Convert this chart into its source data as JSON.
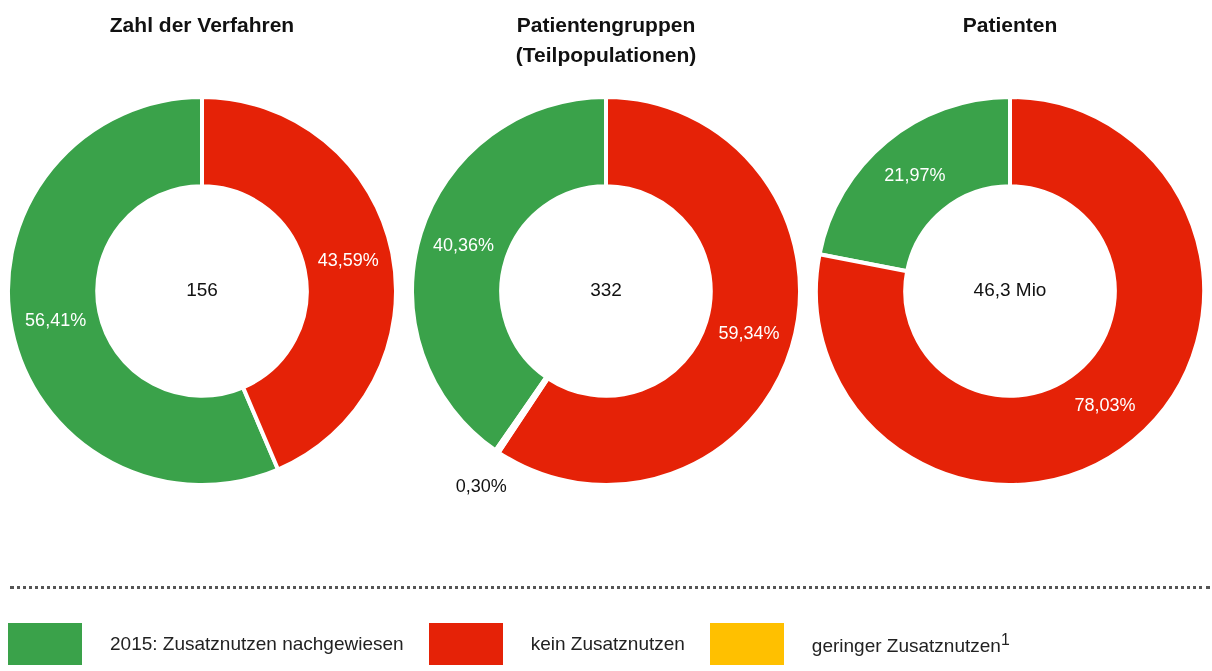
{
  "chart_data": [
    {
      "type": "donut",
      "title": "Zahl der Verfahren",
      "categories": [
        null,
        null
      ],
      "values": [
        56.41,
        43.59
      ],
      "colors": [
        "#3aa24a",
        "#e52207"
      ],
      "value_labels": [
        "56,41%",
        "43,59%"
      ],
      "annotations": [
        "156"
      ]
    },
    {
      "type": "donut",
      "title": "Patientengruppen\n(Teilpopulationen)",
      "categories": [
        "2015: Zusatznutzen nachgewiesen",
        "kein Zusatznutzen",
        "geringer Zusatznutzen$^{1}$"
      ],
      "values": [
        40.36,
        59.34,
        0.3
      ],
      "colors": [
        "#3aa24a",
        "#e52207",
        "#ffc000"
      ],
      "value_labels": [
        "40,36%",
        "59,34%",
        "0,30%"
      ],
      "annotations": [
        "332"
      ],
      "legend": "bottom"
    },
    {
      "type": "donut",
      "title": "Patienten",
      "categories": [
        null,
        null
      ],
      "values": [
        21.97,
        78.03
      ],
      "colors": [
        "#3aa24a",
        "#e52207"
      ],
      "value_labels": [
        "21,97%",
        "78,03%"
      ],
      "annotations": [
        "46,3 Mio"
      ]
    }
  ]
}
